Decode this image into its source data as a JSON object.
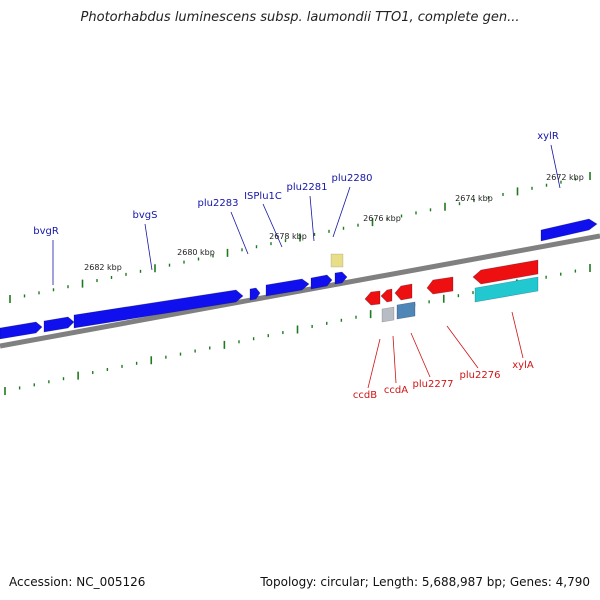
{
  "title": "Photorhabdus luminescens subsp. laumondii TTO1, complete gen...",
  "footer": {
    "accession": "Accession: NC_005126",
    "summary": "Topology: circular; Length: 5,688,987 bp; Genes: 4,790"
  },
  "colors": {
    "forward": "#1010ee",
    "reverse": "#ee1010",
    "fwd_label": "#1515a8",
    "rev_label": "#d01515",
    "backbone": "#808080",
    "ticks": "#1f7a1f",
    "rrna": "#e8de88",
    "cyan": "#22c8d0",
    "gray": "#b8bcc4",
    "steel": "#4f86b8"
  },
  "kbp_labels": [
    "2682 kbp",
    "2680 kbp",
    "2678 kbp",
    "2676 kbp",
    "2674 kbp",
    "2672 kbp"
  ],
  "forward_labels": [
    "bvgR",
    "bvgS",
    "plu2283",
    "ISPlu1C",
    "plu2281",
    "plu2280",
    "xylR"
  ],
  "reverse_labels": [
    "ccdB",
    "ccdA",
    "plu2277",
    "plu2276",
    "xylA"
  ]
}
